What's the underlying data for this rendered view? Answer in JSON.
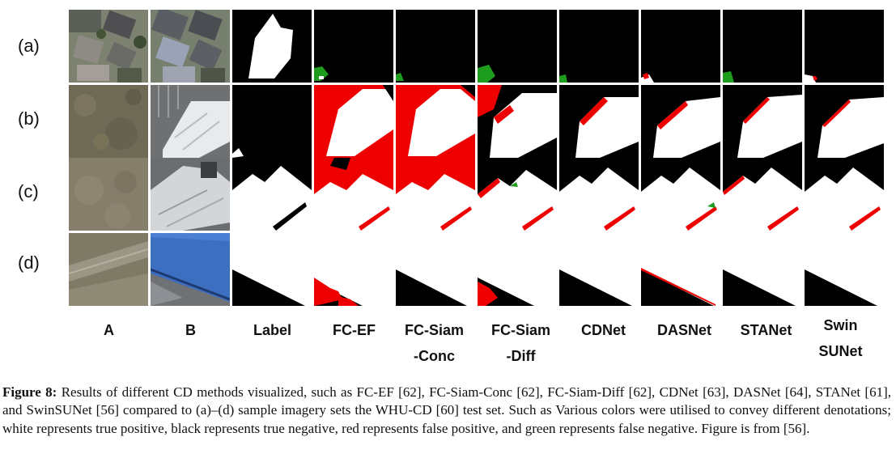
{
  "figure": {
    "row_labels": [
      "(a)",
      "(b)",
      "(c)",
      "(d)"
    ],
    "column_labels": [
      {
        "line1": "A",
        "line2": ""
      },
      {
        "line1": "B",
        "line2": ""
      },
      {
        "line1": "Label",
        "line2": ""
      },
      {
        "line1": "FC-EF",
        "line2": ""
      },
      {
        "line1": "FC-Siam",
        "line2": "-Conc"
      },
      {
        "line1": "FC-Siam",
        "line2": "-Diff"
      },
      {
        "line1": "CDNet",
        "line2": ""
      },
      {
        "line1": "DASNet",
        "line2": ""
      },
      {
        "line1": "STANet",
        "line2": ""
      },
      {
        "line1": "Swin",
        "line2": "SUNet"
      }
    ],
    "legend_colors": {
      "true_positive": "#ffffff",
      "true_negative": "#000000",
      "false_positive": "#ff0000",
      "false_negative": "#00a000"
    }
  },
  "caption": {
    "label": "Figure 8:",
    "text": "Results of different CD methods visualized, such as FC-EF [62], FC-Siam-Conc [62], FC-Siam-Diff [62], CDNet [63], DASNet [64], STANet [61], and SwinSUNet [56] compared to (a)–(d) sample imagery sets the WHU-CD [60] test set. Such as Various colors were utilised to convey different denotations; white represents true positive, black represents true negative, red represents false positive, and green represents false negative. Figure is from [56]."
  }
}
